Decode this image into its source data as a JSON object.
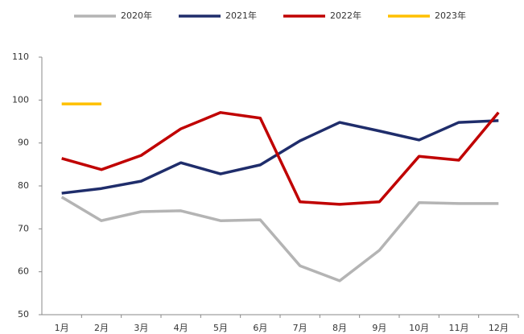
{
  "chart_data": {
    "type": "line",
    "categories": [
      "1月",
      "2月",
      "3月",
      "4月",
      "5月",
      "6月",
      "7月",
      "8月",
      "9月",
      "10月",
      "11月",
      "12月"
    ],
    "series": [
      {
        "name": "2020年",
        "color": "#b4b4b4",
        "values": [
          77.4,
          71.9,
          74.0,
          74.2,
          71.9,
          72.1,
          61.4,
          57.9,
          65.0,
          76.1,
          75.9,
          75.9
        ]
      },
      {
        "name": "2021年",
        "color": "#1f2d6b",
        "values": [
          78.3,
          79.4,
          81.1,
          85.4,
          82.8,
          84.9,
          90.5,
          94.8,
          92.8,
          90.7,
          94.8,
          95.2
        ]
      },
      {
        "name": "2022年",
        "color": "#c00000",
        "values": [
          86.4,
          83.8,
          87.1,
          93.3,
          97.1,
          95.8,
          76.3,
          75.7,
          76.3,
          86.9,
          86.0,
          97.1
        ]
      },
      {
        "name": "2023年",
        "color": "#ffc000",
        "values": [
          99.1,
          99.1,
          null,
          null,
          null,
          null,
          null,
          null,
          null,
          null,
          null,
          null
        ]
      }
    ],
    "ylim": [
      50,
      110
    ],
    "yticks": [
      50,
      60,
      70,
      80,
      90,
      100,
      110
    ],
    "legend": "top"
  }
}
